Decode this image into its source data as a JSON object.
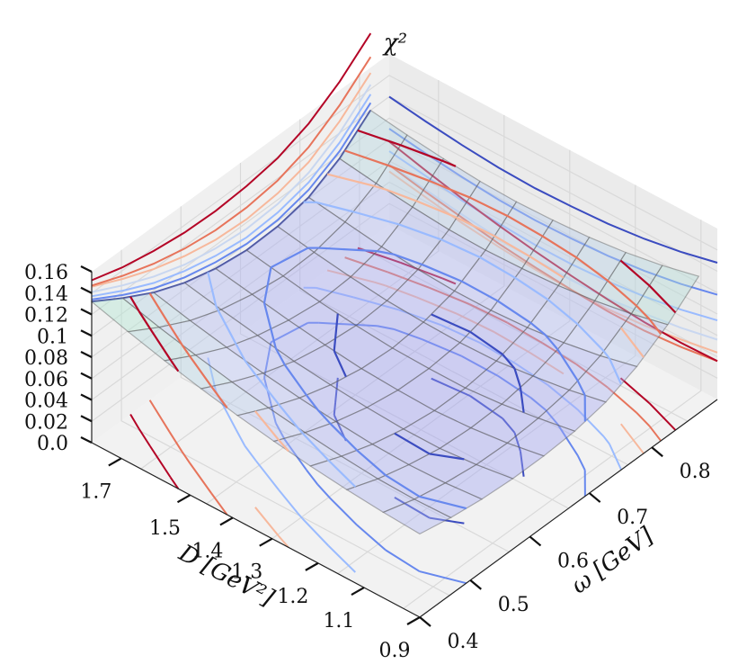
{
  "chart_data": {
    "type": "surface3d",
    "title": "",
    "xlabel": "ω [GeV]",
    "ylabel": "D [GeV²]",
    "zlabel": "χ²",
    "x_ticks": [
      "0.4",
      "0.5",
      "0.6",
      "0.7",
      "0.8"
    ],
    "y_ticks": [
      "0.9",
      "1.1",
      "1.2",
      "1.3",
      "1.4",
      "1.5",
      "1.7"
    ],
    "z_ticks": [
      "0.0",
      "0.02",
      "0.04",
      "0.06",
      "0.08",
      "0.1",
      "0.12",
      "0.14",
      "0.16"
    ],
    "xlim": [
      0.4,
      0.88
    ],
    "ylim": [
      0.9,
      1.8
    ],
    "zlim": [
      0.0,
      0.16
    ],
    "colormap": [
      "#3b4cc0",
      "#6788ee",
      "#9abbff",
      "#c9d7f0",
      "#f7b89c",
      "#e7745b",
      "#b40426"
    ],
    "surface_x": [
      0.4,
      0.45,
      0.5,
      0.55,
      0.6,
      0.65,
      0.7,
      0.75,
      0.8,
      0.85
    ],
    "surface_y": [
      0.9,
      1.0,
      1.1,
      1.2,
      1.3,
      1.4,
      1.5,
      1.6,
      1.7,
      1.8
    ],
    "surface_z": [
      [
        0.078,
        0.072,
        0.068,
        0.066,
        0.066,
        0.068,
        0.074,
        0.086,
        0.104,
        0.128
      ],
      [
        0.08,
        0.071,
        0.065,
        0.061,
        0.06,
        0.062,
        0.067,
        0.078,
        0.096,
        0.12
      ],
      [
        0.083,
        0.072,
        0.064,
        0.058,
        0.056,
        0.057,
        0.062,
        0.072,
        0.09,
        0.114
      ],
      [
        0.087,
        0.075,
        0.065,
        0.058,
        0.054,
        0.054,
        0.058,
        0.068,
        0.086,
        0.11
      ],
      [
        0.092,
        0.079,
        0.068,
        0.06,
        0.055,
        0.054,
        0.057,
        0.066,
        0.084,
        0.108
      ],
      [
        0.098,
        0.084,
        0.072,
        0.063,
        0.057,
        0.055,
        0.058,
        0.066,
        0.083,
        0.107
      ],
      [
        0.105,
        0.09,
        0.077,
        0.067,
        0.061,
        0.058,
        0.06,
        0.068,
        0.084,
        0.108
      ],
      [
        0.113,
        0.097,
        0.083,
        0.073,
        0.066,
        0.062,
        0.064,
        0.071,
        0.087,
        0.111
      ],
      [
        0.122,
        0.105,
        0.09,
        0.079,
        0.072,
        0.068,
        0.069,
        0.076,
        0.091,
        0.115
      ],
      [
        0.132,
        0.114,
        0.098,
        0.086,
        0.078,
        0.074,
        0.075,
        0.081,
        0.096,
        0.12
      ]
    ]
  }
}
